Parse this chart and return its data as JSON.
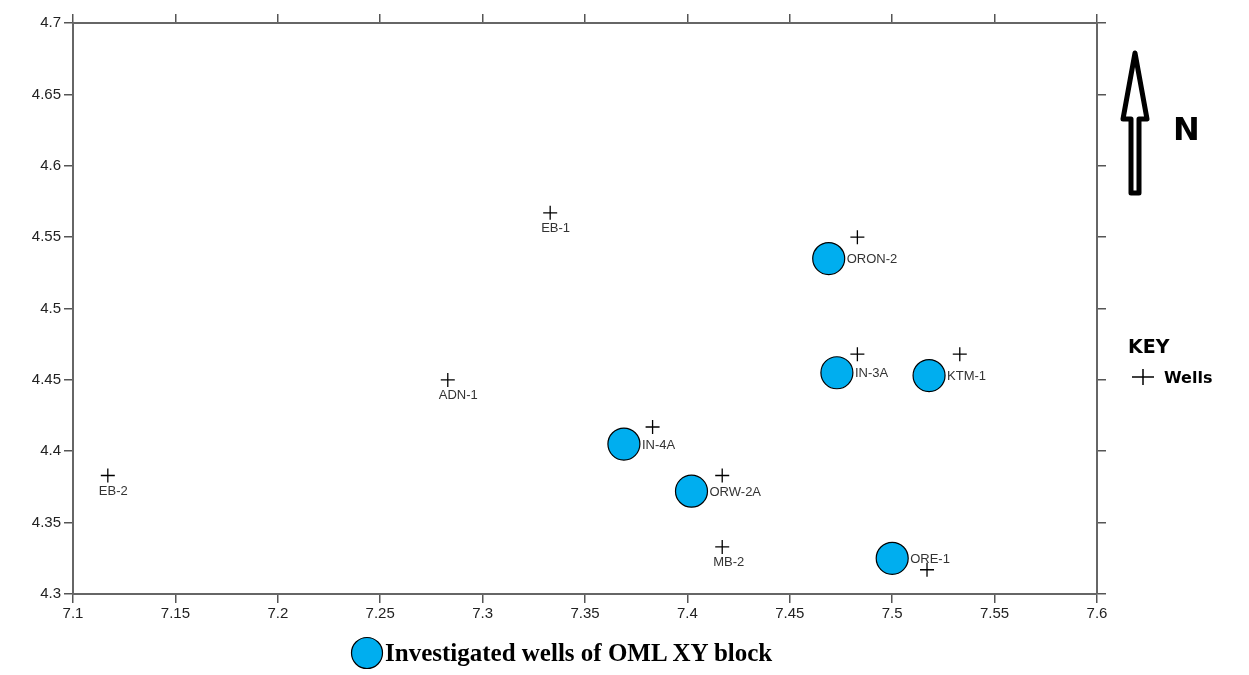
{
  "chart_data": {
    "type": "scatter",
    "xlim": [
      7.1,
      7.6
    ],
    "xticks": [
      7.1,
      7.15,
      7.2,
      7.25,
      7.3,
      7.35,
      7.4,
      7.45,
      7.5,
      7.55,
      7.6
    ],
    "ylim": [
      4.3,
      4.7
    ],
    "yticks": [
      4.3,
      4.35,
      4.4,
      4.45,
      4.5,
      4.55,
      4.6,
      4.65,
      4.7
    ],
    "legend": "right",
    "legend_title": "KEY",
    "annotations": [
      "N"
    ],
    "series": [
      {
        "name": "Wells",
        "marker": "cross",
        "color": "#000000",
        "x": [
          7.333,
          7.483,
          7.283,
          7.483,
          7.533,
          7.383,
          7.117,
          7.417,
          7.417,
          7.517
        ],
        "values": [
          4.567,
          4.55,
          4.45,
          4.468,
          4.468,
          4.417,
          4.383,
          4.383,
          4.333,
          4.317
        ],
        "value_labels": [
          "EB-1",
          null,
          "ADN-1",
          null,
          null,
          null,
          "EB-2",
          null,
          "MB-2",
          null
        ]
      },
      {
        "name": "Investigated wells of OML XY block",
        "marker": "circle",
        "color": "#00aeef",
        "x": [
          7.469,
          7.473,
          7.518,
          7.369,
          7.402,
          7.5
        ],
        "values": [
          4.535,
          4.455,
          4.453,
          4.405,
          4.372,
          4.325
        ],
        "value_labels": [
          "ORON-2",
          "IN-3A",
          "KTM-1",
          "IN-4A",
          "ORW-2A",
          "ORE-1"
        ]
      }
    ]
  }
}
